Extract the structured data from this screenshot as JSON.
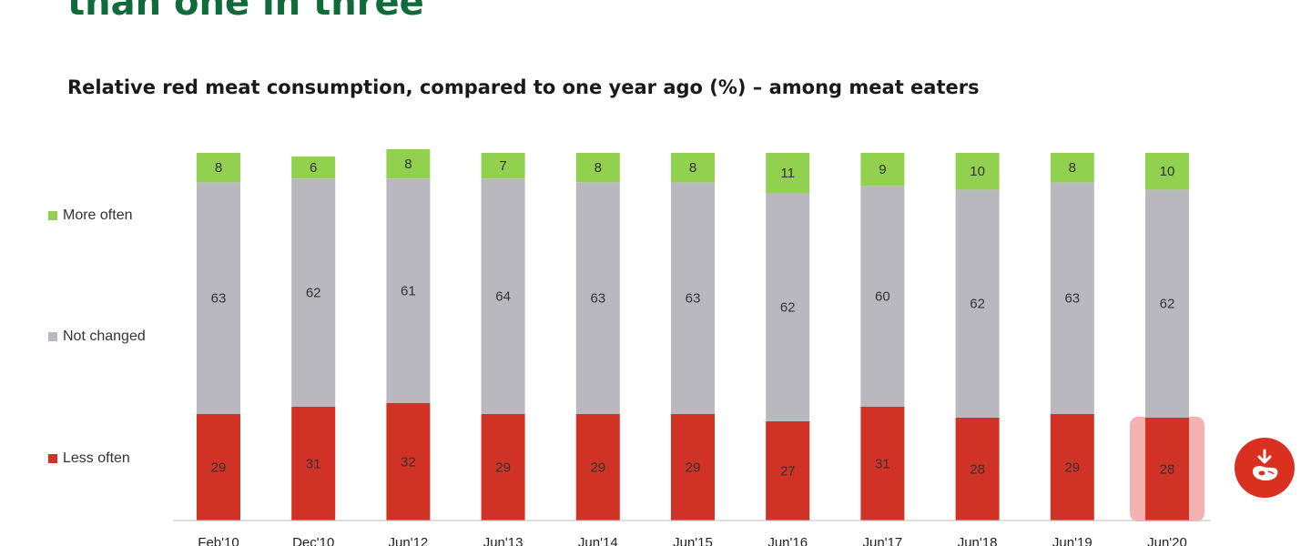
{
  "headline": "than one in three",
  "colors": {
    "headline": "#0f6b3a",
    "more_often": "#92d050",
    "not_changed": "#b9b8bf",
    "less_often": "#d03325",
    "highlight": "#f4b3b0",
    "badge": "#d9301f"
  },
  "legend": {
    "more_often": "More often",
    "not_changed": "Not changed",
    "less_often": "Less often"
  },
  "badge": {
    "icon": "meat-decrease-icon"
  },
  "chart_data": {
    "type": "bar",
    "stacked": true,
    "title": "Relative red meat consumption, compared to one year ago (%) – among meat eaters",
    "categories": [
      "Feb'10",
      "Dec'10",
      "Jun'12",
      "Jun'13",
      "Jun'14",
      "Jun'15",
      "Jun'16",
      "Jun'17",
      "Jun'18",
      "Jun'19",
      "Jun'20"
    ],
    "series": [
      {
        "name": "Less often",
        "color": "#d03325",
        "values": [
          29,
          31,
          32,
          29,
          29,
          29,
          27,
          31,
          28,
          29,
          28
        ]
      },
      {
        "name": "Not changed",
        "color": "#b9b8bf",
        "values": [
          63,
          62,
          61,
          64,
          63,
          63,
          62,
          60,
          62,
          63,
          62
        ]
      },
      {
        "name": "More often",
        "color": "#92d050",
        "values": [
          8,
          6,
          8,
          7,
          8,
          8,
          11,
          9,
          10,
          8,
          10
        ]
      }
    ],
    "ylim": [
      0,
      100
    ],
    "legend_position": "left",
    "highlighted_category": "Jun'20"
  }
}
